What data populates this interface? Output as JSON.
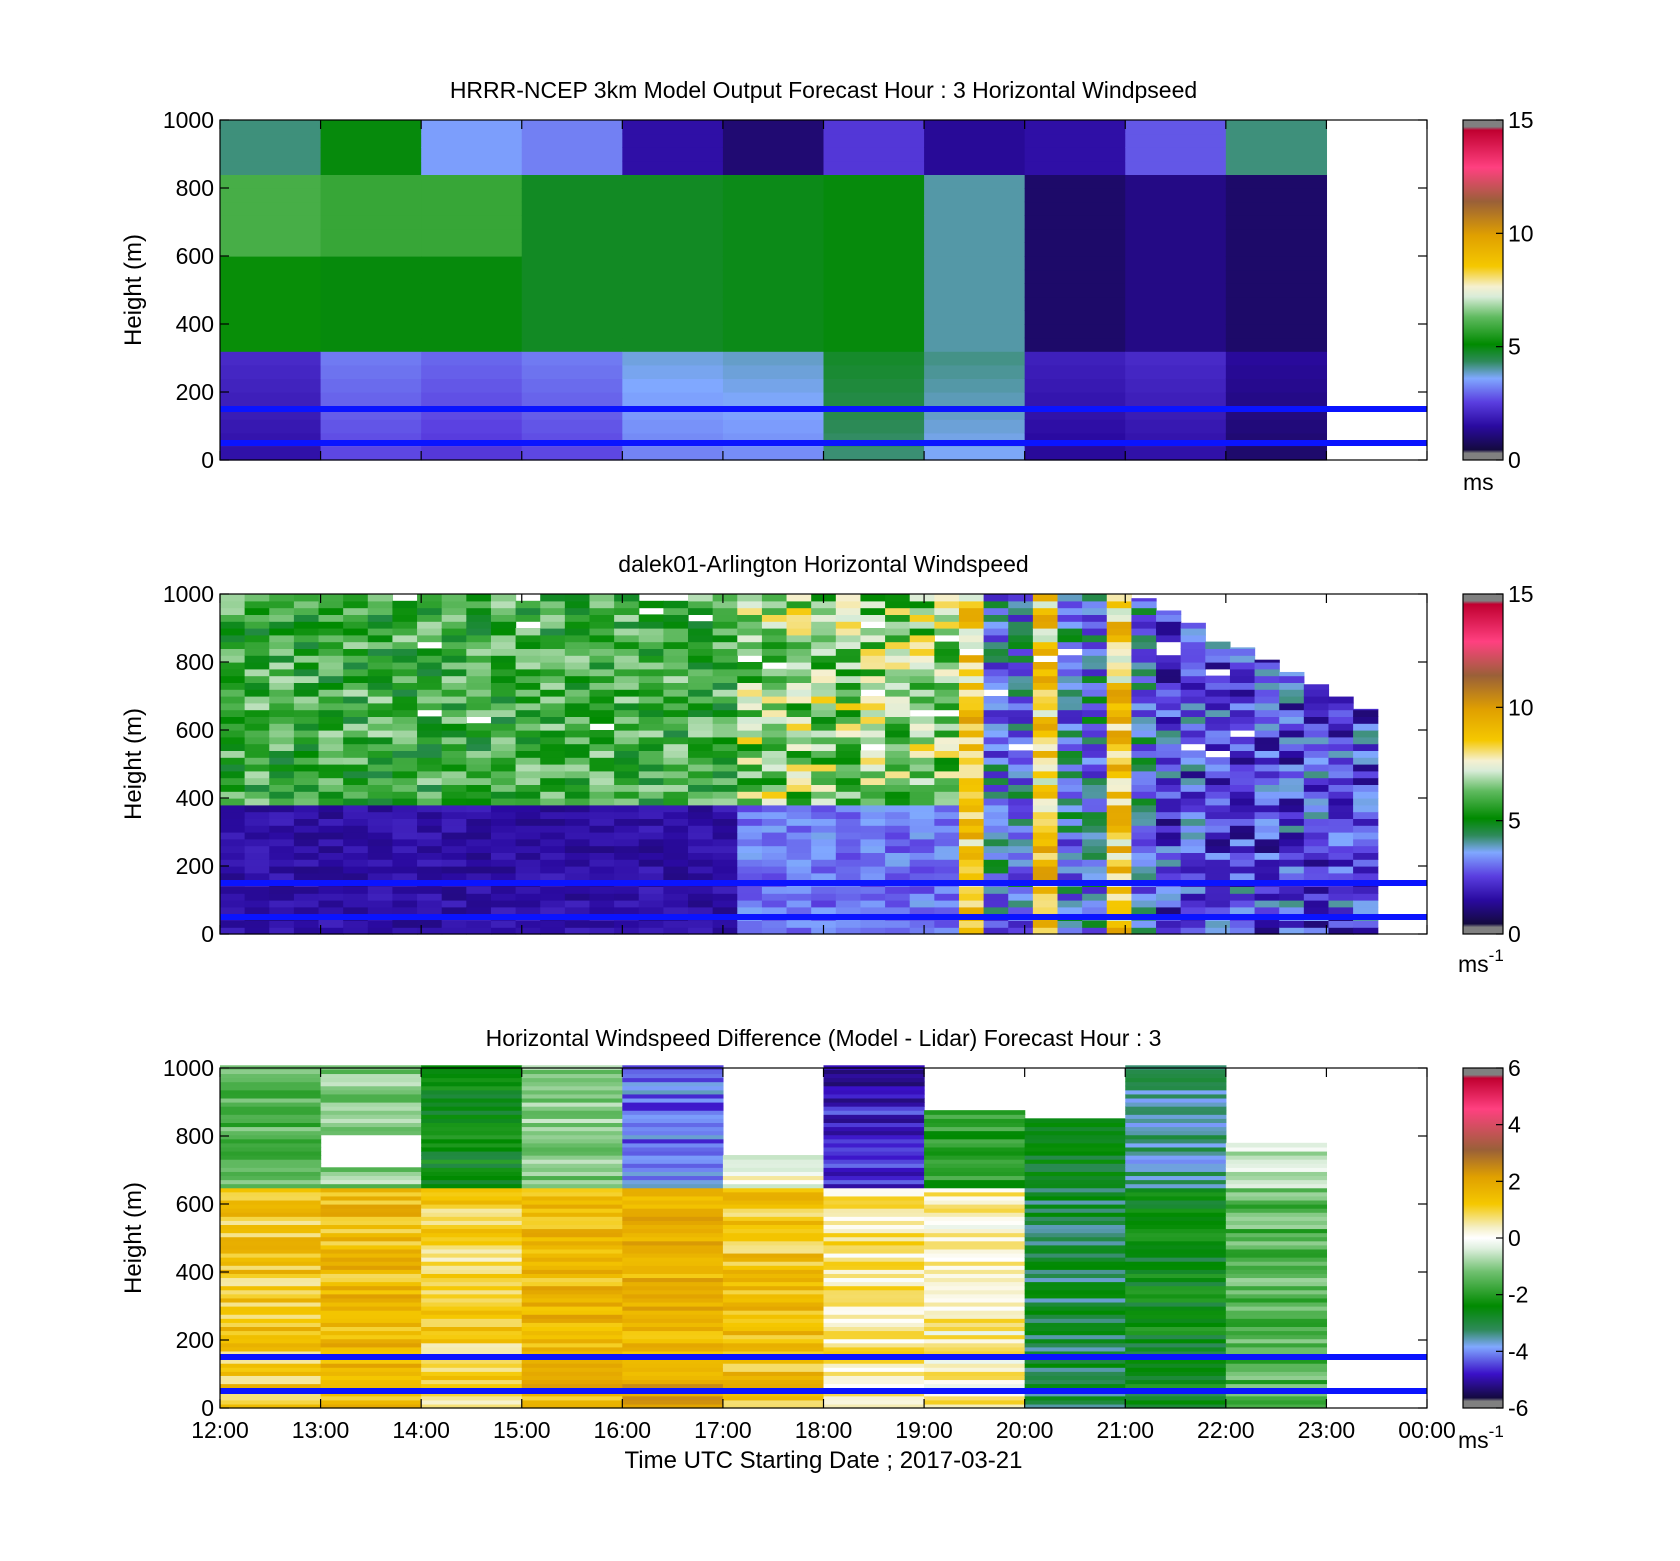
{
  "chart_data": [
    {
      "type": "heatmap",
      "title": "HRRR-NCEP 3km Model Output   Forecast Hour : 3 Horizontal Windpseed",
      "ylabel": "Height (m)",
      "xlabel": "",
      "ylim": [
        0,
        1000
      ],
      "yticks": [
        "0",
        "200",
        "400",
        "600",
        "800",
        "1000"
      ],
      "xticks": [
        "",
        "",
        "",
        "",
        "",
        "",
        "",
        "",
        "",
        "",
        "",
        "",
        ""
      ],
      "colorbar": {
        "min": 0,
        "max": 15,
        "ticks": [
          "0",
          "5",
          "10",
          "15"
        ],
        "unit": "ms",
        "unit_sup": ""
      },
      "reference_lines_m": [
        150,
        50
      ],
      "grid": false
    },
    {
      "type": "heatmap",
      "title": "dalek01-Arlington  Horizontal Windspeed",
      "ylabel": "Height (m)",
      "xlabel": "",
      "ylim": [
        0,
        1000
      ],
      "yticks": [
        "0",
        "200",
        "400",
        "600",
        "800",
        "1000"
      ],
      "xticks": [
        "",
        "",
        "",
        "",
        "",
        "",
        "",
        "",
        "",
        "",
        "",
        "",
        ""
      ],
      "colorbar": {
        "min": 0,
        "max": 15,
        "ticks": [
          "0",
          "5",
          "10",
          "15"
        ],
        "unit": "ms",
        "unit_sup": "-1"
      },
      "reference_lines_m": [
        150,
        50
      ],
      "grid": false
    },
    {
      "type": "heatmap",
      "title": "Horizontal Windspeed Difference (Model - Lidar) Forecast Hour : 3",
      "ylabel": "Height (m)",
      "xlabel": "Time UTC  Starting Date ; 2017-03-21",
      "ylim": [
        0,
        1000
      ],
      "yticks": [
        "0",
        "200",
        "400",
        "600",
        "800",
        "1000"
      ],
      "xticks": [
        "12:00",
        "13:00",
        "14:00",
        "15:00",
        "16:00",
        "17:00",
        "18:00",
        "19:00",
        "20:00",
        "21:00",
        "22:00",
        "23:00",
        "00:00"
      ],
      "colorbar": {
        "min": -6,
        "max": 6,
        "ticks": [
          "-6",
          "-4",
          "-2",
          "0",
          "2",
          "4",
          "6"
        ],
        "unit": "ms",
        "unit_sup": "-1"
      },
      "reference_lines_m": [
        150,
        50
      ],
      "grid": false
    }
  ],
  "colors": {
    "reference_line": "#0a14ff",
    "colormap_stops": [
      "#808080",
      "#1a0a52",
      "#3a10c8",
      "#7a90f5",
      "#1e8c1e",
      "#009000",
      "#d8eed8",
      "#f5f0c8",
      "#f0c000",
      "#a05020",
      "#e83060",
      "#ffffff"
    ]
  }
}
